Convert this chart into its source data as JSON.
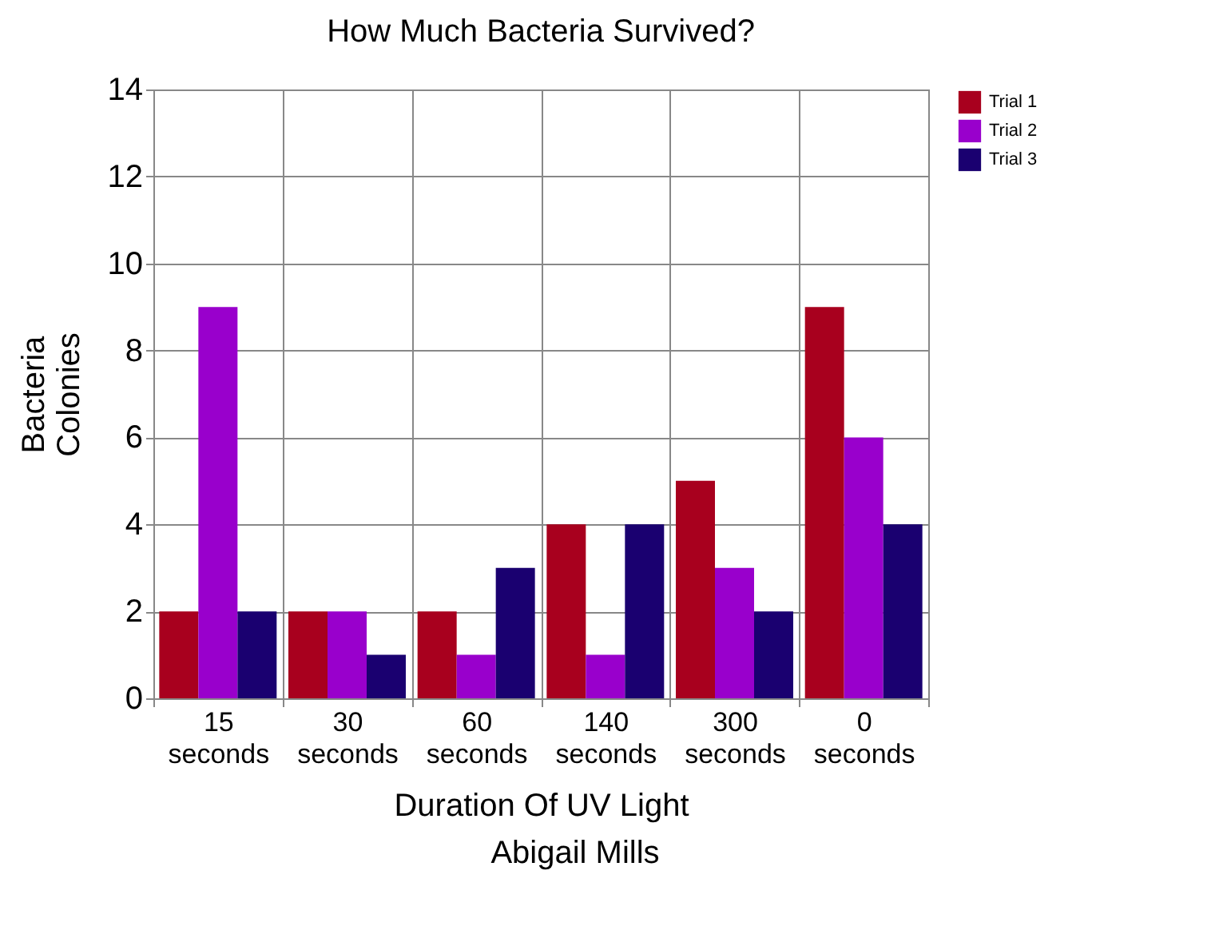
{
  "chart_data": {
    "type": "bar",
    "title": "How Much Bacteria Survived?",
    "xlabel": "Duration Of UV Light",
    "ylabel": "Bacteria Colonies",
    "categories": [
      "15 seconds",
      "30 seconds",
      "60 seconds",
      "140 seconds",
      "300 seconds",
      "0 seconds"
    ],
    "series": [
      {
        "name": "Trial 1",
        "color": "#a8001e",
        "values": [
          2,
          2,
          2,
          4,
          5,
          9
        ]
      },
      {
        "name": "Trial 2",
        "color": "#9900cc",
        "values": [
          9,
          2,
          1,
          1,
          3,
          6
        ]
      },
      {
        "name": "Trial 3",
        "color": "#1a0070",
        "values": [
          2,
          1,
          3,
          4,
          2,
          4
        ]
      }
    ],
    "ylim": [
      0,
      14
    ],
    "yticks": [
      0,
      2,
      4,
      6,
      8,
      10,
      12,
      14
    ],
    "grid": true,
    "legend": "right",
    "annotations": [
      "Abigail Mills"
    ]
  }
}
